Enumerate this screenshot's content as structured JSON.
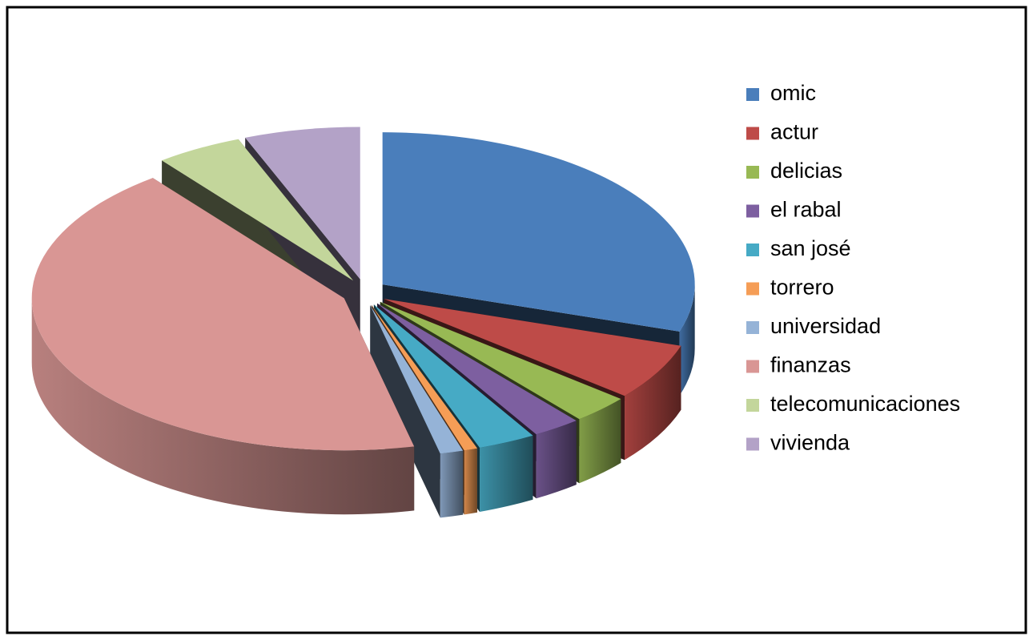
{
  "chart_data": {
    "type": "pie",
    "categories": [
      "omic",
      "actur",
      "delicias",
      "el rabal",
      "san josé",
      "torrero",
      "universidad",
      "finanzas",
      "telecomunicaciones",
      "vivienda"
    ],
    "values": [
      30,
      6,
      3,
      2.5,
      3,
      0.7,
      1.2,
      43.1,
      4.5,
      6
    ],
    "colors": [
      "#4a7ebb",
      "#be4b48",
      "#98b954",
      "#7d5fa0",
      "#46aac5",
      "#f59d56",
      "#95b3d7",
      "#d99694",
      "#c3d69b",
      "#b3a2c7"
    ],
    "legend": "right",
    "exploded": true,
    "three_d": true
  }
}
